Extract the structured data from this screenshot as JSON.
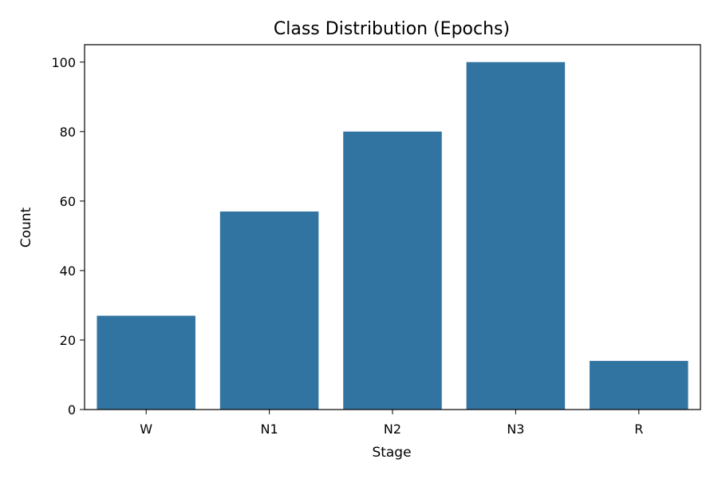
{
  "chart_data": {
    "type": "bar",
    "title": "Class Distribution (Epochs)",
    "xlabel": "Stage",
    "ylabel": "Count",
    "categories": [
      "W",
      "N1",
      "N2",
      "N3",
      "R"
    ],
    "values": [
      27,
      57,
      80,
      100,
      14
    ],
    "ylim": [
      0,
      105
    ],
    "yticks": [
      0,
      20,
      40,
      60,
      80,
      100
    ],
    "bar_color": "#3274a1",
    "grid": false,
    "legend": "none"
  }
}
